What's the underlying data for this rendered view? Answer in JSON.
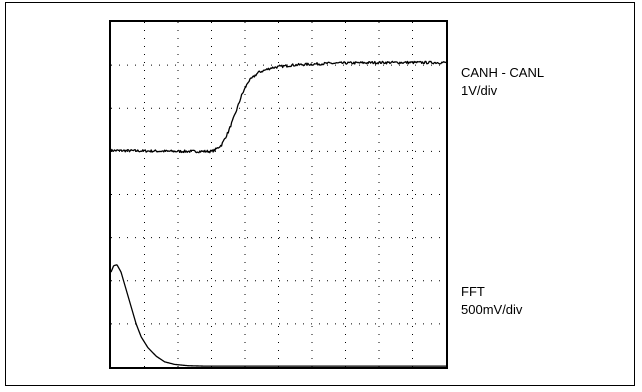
{
  "chart_data": {
    "type": "line",
    "title": "",
    "xlabel": "",
    "ylabel": "",
    "grid": true,
    "grid_style": "dotted",
    "divisions": {
      "x": 10,
      "y": 8
    },
    "xlim": [
      0,
      10
    ],
    "ylim": [
      0,
      8
    ],
    "series": [
      {
        "name": "CANH - CANL",
        "scale": "1V/div",
        "color": "#000000",
        "noise": 0.03,
        "points": [
          [
            0,
            5.02
          ],
          [
            2.0,
            5.0
          ],
          [
            3.0,
            5.0
          ],
          [
            3.1,
            5.03
          ],
          [
            3.3,
            5.15
          ],
          [
            3.5,
            5.45
          ],
          [
            3.7,
            5.85
          ],
          [
            3.9,
            6.3
          ],
          [
            4.1,
            6.62
          ],
          [
            4.4,
            6.83
          ],
          [
            4.8,
            6.94
          ],
          [
            5.4,
            7.0
          ],
          [
            6.5,
            7.04
          ],
          [
            8.0,
            7.06
          ],
          [
            10,
            7.06
          ]
        ]
      },
      {
        "name": "FFT",
        "scale": "500mV/div",
        "color": "#000000",
        "noise": 0.0,
        "points": [
          [
            0,
            2.2
          ],
          [
            0.08,
            2.35
          ],
          [
            0.18,
            2.37
          ],
          [
            0.3,
            2.2
          ],
          [
            0.45,
            1.8
          ],
          [
            0.6,
            1.4
          ],
          [
            0.75,
            1.0
          ],
          [
            0.9,
            0.7
          ],
          [
            1.1,
            0.45
          ],
          [
            1.35,
            0.25
          ],
          [
            1.6,
            0.12
          ],
          [
            1.9,
            0.06
          ],
          [
            2.3,
            0.03
          ],
          [
            2.8,
            0.02
          ],
          [
            10,
            0.02
          ]
        ]
      }
    ]
  },
  "labels": {
    "canh_line1": "CANH - CANL",
    "canh_line2": "1V/div",
    "fft_line1": "FFT",
    "fft_line2": "500mV/div"
  }
}
